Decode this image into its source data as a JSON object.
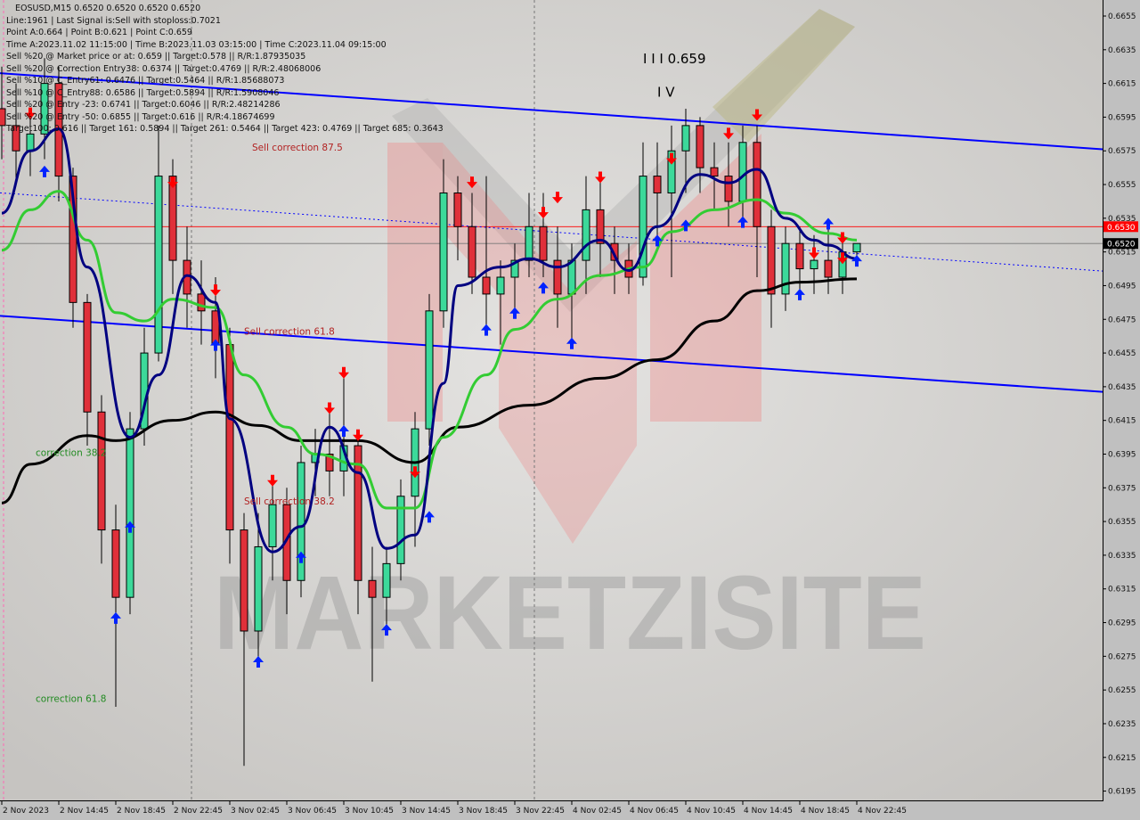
{
  "header": {
    "title": "EOSUSD,M15  0.6520 0.6520 0.6520 0.6520",
    "lines": [
      "Line:1961 | Last Signal is:Sell with stoploss:0.7021",
      "Point A:0.664 | Point B:0.621 | Point C:0.659",
      "Time A:2023.11.02 11:15:00 | Time B:2023.11.03 03:15:00 | Time C:2023.11.04 09:15:00",
      "Sell %20 @ Market price or at: 0.659 || Target:0.578 || R/R:1.87935035",
      "Sell %20 @ Correction Entry38: 0.6374 || Target:0.4769 || R/R:2.48068006",
      "Sell %10 @ C_Entry61: 0.6476 || Target:0.5464 || R/R:1.85688073",
      "Sell %10 @ C_Entry88: 0.6586 || Target:0.5894 || R/R:1.5908046",
      "Sell %20 @ Entry -23: 0.6741 || Target:0.6046 || R/R:2.48214286",
      "Sell %20 @ Entry -50: 0.6855 || Target:0.616 || R/R:4.18674699",
      "Target100: 0.616 || Target 161: 0.5894 || Target 261: 0.5464 || Target 423: 0.4769 || Target 685: 0.3643"
    ]
  },
  "watermark": "MARKETZISITE",
  "chart_data": {
    "type": "candlestick",
    "symbol": "EOSUSD",
    "timeframe": "M15",
    "ylim": [
      0.6185,
      0.6665
    ],
    "y_ticks": [
      "0.6655",
      "0.6635",
      "0.6615",
      "0.6595",
      "0.6575",
      "0.6555",
      "0.6535",
      "0.6515",
      "0.6495",
      "0.6475",
      "0.6455",
      "0.6435",
      "0.6415",
      "0.6395",
      "0.6375",
      "0.6355",
      "0.6335",
      "0.6315",
      "0.6295",
      "0.6275",
      "0.6255",
      "0.6235",
      "0.6215",
      "0.6195"
    ],
    "x_ticks": [
      "2 Nov 2023",
      "2 Nov 14:45",
      "2 Nov 18:45",
      "2 Nov 22:45",
      "3 Nov 02:45",
      "3 Nov 06:45",
      "3 Nov 10:45",
      "3 Nov 14:45",
      "3 Nov 18:45",
      "3 Nov 22:45",
      "4 Nov 02:45",
      "4 Nov 06:45",
      "4 Nov 10:45",
      "4 Nov 14:45",
      "4 Nov 18:45",
      "4 Nov 22:45"
    ],
    "candles": [
      [
        "2 Nov 10:45",
        0.66,
        0.6625,
        0.657,
        0.659
      ],
      [
        "2 Nov 11:45",
        0.659,
        0.6615,
        0.6555,
        0.6575
      ],
      [
        "2 Nov 12:45",
        0.6575,
        0.66,
        0.656,
        0.6585
      ],
      [
        "2 Nov 13:45",
        0.6585,
        0.663,
        0.657,
        0.6615
      ],
      [
        "2 Nov 14:45",
        0.6615,
        0.6625,
        0.6545,
        0.656
      ],
      [
        "2 Nov 15:45",
        0.656,
        0.6565,
        0.647,
        0.6485
      ],
      [
        "2 Nov 16:45",
        0.6485,
        0.649,
        0.64,
        0.642
      ],
      [
        "2 Nov 17:45",
        0.642,
        0.643,
        0.633,
        0.635
      ],
      [
        "2 Nov 18:45",
        0.635,
        0.6365,
        0.6245,
        0.631
      ],
      [
        "2 Nov 19:45",
        0.631,
        0.642,
        0.63,
        0.641
      ],
      [
        "2 Nov 20:45",
        0.641,
        0.647,
        0.64,
        0.6455
      ],
      [
        "2 Nov 21:45",
        0.6455,
        0.659,
        0.645,
        0.656
      ],
      [
        "2 Nov 22:45",
        0.656,
        0.657,
        0.649,
        0.651
      ],
      [
        "2 Nov 23:45",
        0.651,
        0.653,
        0.647,
        0.649
      ],
      [
        "3 Nov 00:45",
        0.649,
        0.651,
        0.646,
        0.648
      ],
      [
        "3 Nov 01:45",
        0.648,
        0.65,
        0.644,
        0.646
      ],
      [
        "3 Nov 02:45",
        0.646,
        0.647,
        0.633,
        0.635
      ],
      [
        "3 Nov 03:45",
        0.635,
        0.636,
        0.621,
        0.629
      ],
      [
        "3 Nov 04:45",
        0.629,
        0.636,
        0.627,
        0.634
      ],
      [
        "3 Nov 05:45",
        0.634,
        0.638,
        0.632,
        0.6365
      ],
      [
        "3 Nov 06:45",
        0.6365,
        0.6375,
        0.63,
        0.632
      ],
      [
        "3 Nov 07:45",
        0.632,
        0.64,
        0.631,
        0.639
      ],
      [
        "3 Nov 08:45",
        0.639,
        0.641,
        0.637,
        0.6395
      ],
      [
        "3 Nov 09:45",
        0.6395,
        0.642,
        0.637,
        0.6385
      ],
      [
        "3 Nov 10:45",
        0.6385,
        0.644,
        0.637,
        0.64
      ],
      [
        "3 Nov 11:45",
        0.64,
        0.6405,
        0.63,
        0.632
      ],
      [
        "3 Nov 12:45",
        0.632,
        0.634,
        0.626,
        0.631
      ],
      [
        "3 Nov 13:45",
        0.631,
        0.634,
        0.629,
        0.633
      ],
      [
        "3 Nov 14:45",
        0.633,
        0.638,
        0.632,
        0.637
      ],
      [
        "3 Nov 15:45",
        0.637,
        0.642,
        0.634,
        0.641
      ],
      [
        "3 Nov 16:45",
        0.641,
        0.649,
        0.64,
        0.648
      ],
      [
        "3 Nov 17:45",
        0.648,
        0.657,
        0.647,
        0.655
      ],
      [
        "3 Nov 18:45",
        0.655,
        0.656,
        0.651,
        0.653
      ],
      [
        "3 Nov 19:45",
        0.653,
        0.655,
        0.649,
        0.65
      ],
      [
        "3 Nov 20:45",
        0.65,
        0.656,
        0.647,
        0.649
      ],
      [
        "3 Nov 21:45",
        0.649,
        0.651,
        0.646,
        0.65
      ],
      [
        "3 Nov 22:45",
        0.65,
        0.652,
        0.648,
        0.651
      ],
      [
        "3 Nov 23:45",
        0.651,
        0.655,
        0.65,
        0.653
      ],
      [
        "4 Nov 00:45",
        0.653,
        0.655,
        0.65,
        0.651
      ],
      [
        "4 Nov 01:45",
        0.651,
        0.653,
        0.647,
        0.649
      ],
      [
        "4 Nov 02:45",
        0.649,
        0.652,
        0.646,
        0.651
      ],
      [
        "4 Nov 03:45",
        0.651,
        0.656,
        0.649,
        0.654
      ],
      [
        "4 Nov 04:45",
        0.654,
        0.656,
        0.65,
        0.652
      ],
      [
        "4 Nov 05:45",
        0.652,
        0.653,
        0.649,
        0.651
      ],
      [
        "4 Nov 06:45",
        0.651,
        0.652,
        0.649,
        0.65
      ],
      [
        "4 Nov 07:45",
        0.65,
        0.658,
        0.6495,
        0.656
      ],
      [
        "4 Nov 08:45",
        0.656,
        0.658,
        0.652,
        0.655
      ],
      [
        "4 Nov 09:45",
        0.655,
        0.659,
        0.65,
        0.6575
      ],
      [
        "4 Nov 10:45",
        0.6575,
        0.66,
        0.655,
        0.659
      ],
      [
        "4 Nov 11:45",
        0.659,
        0.6595,
        0.655,
        0.6565
      ],
      [
        "4 Nov 12:45",
        0.6565,
        0.658,
        0.654,
        0.656
      ],
      [
        "4 Nov 13:45",
        0.656,
        0.658,
        0.653,
        0.6545
      ],
      [
        "4 Nov 14:45",
        0.6545,
        0.659,
        0.653,
        0.658
      ],
      [
        "4 Nov 15:45",
        0.658,
        0.659,
        0.65,
        0.653
      ],
      [
        "4 Nov 16:45",
        0.653,
        0.654,
        0.647,
        0.649
      ],
      [
        "4 Nov 17:45",
        0.649,
        0.653,
        0.648,
        0.652
      ],
      [
        "4 Nov 18:45",
        0.652,
        0.653,
        0.649,
        0.6505
      ],
      [
        "4 Nov 19:45",
        0.6505,
        0.6525,
        0.649,
        0.651
      ],
      [
        "4 Nov 20:45",
        0.651,
        0.653,
        0.649,
        0.65
      ],
      [
        "4 Nov 21:45",
        0.65,
        0.6525,
        0.649,
        0.6515
      ],
      [
        "4 Nov 22:45",
        0.6515,
        0.652,
        0.651,
        0.652
      ]
    ],
    "moving_averages": [
      {
        "color": "#000000",
        "points": [
          [
            "2 Nov 10:45",
            0.6366
          ],
          [
            "2 Nov 12:45",
            0.6389
          ],
          [
            "2 Nov 16:45",
            0.6406
          ],
          [
            "2 Nov 18:45",
            0.6403
          ],
          [
            "2 Nov 22:45",
            0.6415
          ],
          [
            "3 Nov 01:45",
            0.642
          ],
          [
            "3 Nov 04:45",
            0.6412
          ],
          [
            "3 Nov 07:45",
            0.6403
          ],
          [
            "3 Nov 11:45",
            0.6403
          ],
          [
            "3 Nov 15:45",
            0.639
          ],
          [
            "3 Nov 18:45",
            0.6411
          ],
          [
            "3 Nov 23:45",
            0.6424
          ],
          [
            "4 Nov 04:45",
            0.644
          ],
          [
            "4 Nov 08:45",
            0.6451
          ],
          [
            "4 Nov 12:45",
            0.6474
          ],
          [
            "4 Nov 15:45",
            0.6492
          ],
          [
            "4 Nov 18:45",
            0.6497
          ],
          [
            "4 Nov 22:45",
            0.6499
          ]
        ]
      },
      {
        "color": "#33cc33",
        "points": [
          [
            "2 Nov 10:45",
            0.6516
          ],
          [
            "2 Nov 12:45",
            0.654
          ],
          [
            "2 Nov 14:45",
            0.6551
          ],
          [
            "2 Nov 16:45",
            0.6522
          ],
          [
            "2 Nov 18:45",
            0.6479
          ],
          [
            "2 Nov 20:45",
            0.6474
          ],
          [
            "2 Nov 22:45",
            0.6487
          ],
          [
            "3 Nov 01:45",
            0.6482
          ],
          [
            "3 Nov 03:45",
            0.6442
          ],
          [
            "3 Nov 06:45",
            0.6411
          ],
          [
            "3 Nov 08:45",
            0.6395
          ],
          [
            "3 Nov 11:45",
            0.6389
          ],
          [
            "3 Nov 13:45",
            0.6363
          ],
          [
            "3 Nov 15:45",
            0.6363
          ],
          [
            "3 Nov 17:45",
            0.6405
          ],
          [
            "3 Nov 20:45",
            0.6442
          ],
          [
            "3 Nov 22:45",
            0.6469
          ],
          [
            "4 Nov 01:45",
            0.6487
          ],
          [
            "4 Nov 04:45",
            0.6501
          ],
          [
            "4 Nov 07:45",
            0.6506
          ],
          [
            "4 Nov 09:45",
            0.6527
          ],
          [
            "4 Nov 12:45",
            0.654
          ],
          [
            "4 Nov 15:45",
            0.6546
          ],
          [
            "4 Nov 17:45",
            0.6538
          ],
          [
            "4 Nov 20:45",
            0.6526
          ],
          [
            "4 Nov 22:45",
            0.6522
          ]
        ]
      },
      {
        "color": "#000080",
        "points": [
          [
            "2 Nov 10:45",
            0.6538
          ],
          [
            "2 Nov 12:45",
            0.6575
          ],
          [
            "2 Nov 14:45",
            0.6588
          ],
          [
            "2 Nov 16:45",
            0.6506
          ],
          [
            "2 Nov 19:45",
            0.6405
          ],
          [
            "2 Nov 21:45",
            0.6442
          ],
          [
            "2 Nov 23:45",
            0.6501
          ],
          [
            "3 Nov 01:45",
            0.6485
          ],
          [
            "3 Nov 02:45",
            0.6416
          ],
          [
            "3 Nov 05:45",
            0.6337
          ],
          [
            "3 Nov 07:45",
            0.6352
          ],
          [
            "3 Nov 09:45",
            0.6411
          ],
          [
            "3 Nov 11:45",
            0.6384
          ],
          [
            "3 Nov 13:45",
            0.6339
          ],
          [
            "3 Nov 15:45",
            0.6347
          ],
          [
            "3 Nov 17:45",
            0.6437
          ],
          [
            "3 Nov 18:45",
            0.6495
          ],
          [
            "3 Nov 21:45",
            0.6506
          ],
          [
            "3 Nov 23:45",
            0.6511
          ],
          [
            "4 Nov 01:45",
            0.6506
          ],
          [
            "4 Nov 04:45",
            0.6522
          ],
          [
            "4 Nov 06:45",
            0.6504
          ],
          [
            "4 Nov 08:45",
            0.653
          ],
          [
            "4 Nov 11:45",
            0.6561
          ],
          [
            "4 Nov 13:45",
            0.6556
          ],
          [
            "4 Nov 15:45",
            0.6564
          ],
          [
            "4 Nov 17:45",
            0.6535
          ],
          [
            "4 Nov 19:45",
            0.6522
          ],
          [
            "4 Nov 20:45",
            0.6519
          ],
          [
            "4 Nov 22:45",
            0.6511
          ]
        ]
      }
    ],
    "trend_lines": [
      {
        "style": "solid",
        "color": "#0000ff",
        "from": [
          "2 Nov 10:45",
          0.6621
        ],
        "to": [
          "4 Nov 22:45",
          0.6586
        ]
      },
      {
        "style": "solid",
        "color": "#0000ff",
        "from": [
          "2 Nov 10:45",
          0.6477
        ],
        "to": [
          "4 Nov 22:45",
          0.6442
        ]
      },
      {
        "style": "dotted",
        "color": "#0000ff",
        "from": [
          "2 Nov 10:45",
          0.655
        ],
        "to": [
          "4 Nov 22:45",
          0.6514
        ]
      }
    ],
    "price_lines": [
      {
        "value": "0.6530",
        "color": "#ff0000"
      },
      {
        "value": "0.6520",
        "color": "#000000"
      }
    ],
    "signals": [
      [
        "sell",
        "2 Nov 12:45",
        0.6597
      ],
      [
        "sell",
        "2 Nov 22:45",
        0.6556
      ],
      [
        "sell",
        "3 Nov 01:45",
        0.6492
      ],
      [
        "sell",
        "3 Nov 05:45",
        0.6379
      ],
      [
        "sell",
        "3 Nov 09:45",
        0.6422
      ],
      [
        "sell",
        "3 Nov 10:45",
        0.6443
      ],
      [
        "sell",
        "3 Nov 11:45",
        0.6406
      ],
      [
        "sell",
        "3 Nov 15:45",
        0.6384
      ],
      [
        "sell",
        "3 Nov 19:45",
        0.6556
      ],
      [
        "sell",
        "4 Nov 00:45",
        0.6538
      ],
      [
        "sell",
        "4 Nov 01:45",
        0.6547
      ],
      [
        "sell",
        "4 Nov 04:45",
        0.6559
      ],
      [
        "sell",
        "4 Nov 09:45",
        0.657
      ],
      [
        "sell",
        "4 Nov 13:45",
        0.6585
      ],
      [
        "sell",
        "4 Nov 15:45",
        0.6596
      ],
      [
        "sell",
        "4 Nov 19:45",
        0.6514
      ],
      [
        "sell",
        "4 Nov 21:45",
        0.6523
      ],
      [
        "sell",
        "4 Nov 21:45",
        0.6511
      ],
      [
        "buy",
        "2 Nov 13:45",
        0.6563
      ],
      [
        "buy",
        "2 Nov 19:45",
        0.6352
      ],
      [
        "buy",
        "2 Nov 18:45",
        0.6298
      ],
      [
        "buy",
        "3 Nov 01:45",
        0.646
      ],
      [
        "buy",
        "3 Nov 04:45",
        0.6272
      ],
      [
        "buy",
        "3 Nov 07:45",
        0.6334
      ],
      [
        "buy",
        "3 Nov 10:45",
        0.6409
      ],
      [
        "buy",
        "3 Nov 13:45",
        0.6291
      ],
      [
        "buy",
        "3 Nov 16:45",
        0.6358
      ],
      [
        "buy",
        "3 Nov 20:45",
        0.6469
      ],
      [
        "buy",
        "3 Nov 22:45",
        0.6479
      ],
      [
        "buy",
        "4 Nov 00:45",
        0.6494
      ],
      [
        "buy",
        "4 Nov 02:45",
        0.6461
      ],
      [
        "buy",
        "4 Nov 08:45",
        0.6522
      ],
      [
        "buy",
        "4 Nov 10:45",
        0.6531
      ],
      [
        "buy",
        "4 Nov 14:45",
        0.6533
      ],
      [
        "buy",
        "4 Nov 18:45",
        0.649
      ],
      [
        "buy",
        "4 Nov 20:45",
        0.6532
      ],
      [
        "buy",
        "4 Nov 22:45",
        0.651
      ]
    ],
    "annotations": [
      {
        "text": "I I I 0.659",
        "color": "#000000",
        "at": [
          "4 Nov 07:45",
          0.6627
        ]
      },
      {
        "text": "I V",
        "color": "#000000",
        "at": [
          "4 Nov 08:45",
          0.6607
        ]
      },
      {
        "text": "Sell correction 87.5",
        "color": "#b22222",
        "at": [
          "2 Nov 27:45",
          0.6575
        ]
      },
      {
        "text": "Sell correction 61.8",
        "color": "#b22222",
        "at": [
          "3 Nov 03:45",
          0.6466
        ]
      },
      {
        "text": "Sell correction 38.2",
        "color": "#b22222",
        "at": [
          "3 Nov 03:45",
          0.6365
        ]
      },
      {
        "text": "correction 38.2",
        "color": "#228b22",
        "at": [
          "2 Nov 12:45",
          0.6394
        ]
      },
      {
        "text": "correction 61.8",
        "color": "#228b22",
        "at": [
          "2 Nov 12:45",
          0.6248
        ]
      }
    ]
  }
}
